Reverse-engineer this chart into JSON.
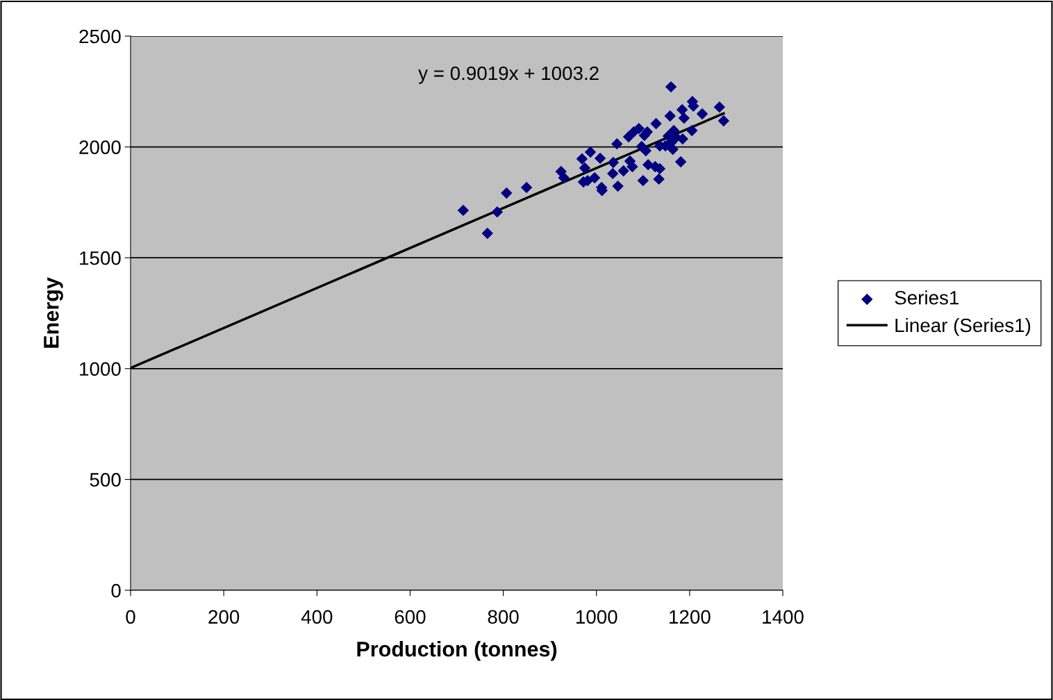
{
  "chart_data": {
    "type": "scatter",
    "xlabel": "Production (tonnes)",
    "ylabel": "Energy",
    "annotations": [
      "y = 0.9019x + 1003.2"
    ],
    "xlim": [
      0,
      1400
    ],
    "xticks": [
      0,
      200,
      400,
      600,
      800,
      1000,
      1200,
      1400
    ],
    "ylim": [
      0,
      2500
    ],
    "yticks": [
      0,
      500,
      1000,
      1500,
      2000,
      2500
    ],
    "grid": "y",
    "legend": "right",
    "marker": "diamond",
    "series": [
      {
        "name": "Series1",
        "color": "#000080",
        "x": [
          714,
          766,
          787,
          807,
          850,
          924,
          930,
          969,
          972,
          975,
          987,
          981,
          996,
          1008,
          1011,
          1012,
          1036,
          1035,
          1044,
          1046,
          1058,
          1069,
          1072,
          1077,
          1080,
          1091,
          1097,
          1100,
          1103,
          1106,
          1109,
          1111,
          1126,
          1128,
          1134,
          1136,
          1136,
          1148,
          1154,
          1158,
          1160,
          1161,
          1164,
          1166,
          1171,
          1181,
          1184,
          1185,
          1188,
          1205,
          1206,
          1208,
          1227,
          1264,
          1273
        ],
        "values": [
          1714,
          1610,
          1707,
          1792,
          1817,
          1889,
          1861,
          1946,
          1842,
          1905,
          1977,
          1848,
          1861,
          1949,
          1817,
          1804,
          1930,
          1880,
          2014,
          1823,
          1892,
          2046,
          1936,
          1911,
          2068,
          2083,
          2002,
          1848,
          2052,
          1983,
          2068,
          1920,
          1911,
          2105,
          1855,
          1902,
          2005,
          2005,
          2049,
          2140,
          2271,
          2021,
          1989,
          2074,
          2043,
          1933,
          2168,
          2036,
          2130,
          2074,
          2205,
          2184,
          2149,
          2180,
          2118
        ]
      },
      {
        "name": "Linear (Series1)",
        "type": "line",
        "color": "#000000",
        "marker": "none",
        "line_style": "solid",
        "x": [
          0,
          1273
        ],
        "values": [
          1003,
          2151
        ]
      }
    ]
  }
}
